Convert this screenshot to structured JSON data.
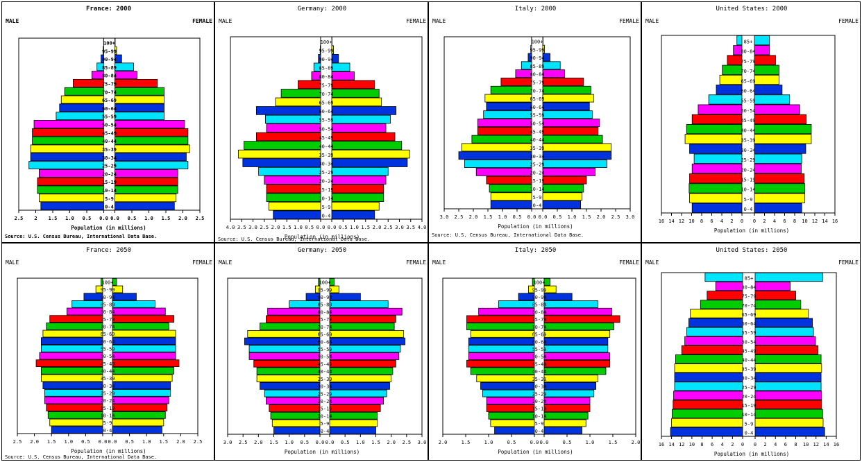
{
  "palette": [
    "#0033dd",
    "#ffff00",
    "#00cc00",
    "#ff0000",
    "#ff00ff",
    "#00e5ff"
  ],
  "age_groups": [
    "0-4",
    "5-9",
    "10-14",
    "15-19",
    "20-24",
    "25-29",
    "30-34",
    "35-39",
    "40-44",
    "45-49",
    "50-54",
    "55-59",
    "60-64",
    "65-69",
    "70-74",
    "75-79",
    "80-84",
    "85-89",
    "90-94",
    "95-99",
    "100+"
  ],
  "age_groups_us": [
    "0-4",
    "5-9",
    "10-14",
    "15-19",
    "20-24",
    "25-29",
    "30-34",
    "35-39",
    "40-44",
    "45-49",
    "50-54",
    "55-59",
    "60-64",
    "65-69",
    "70-74",
    "75-79",
    "80-84",
    "85+"
  ],
  "chart_data": [
    {
      "type": "bar",
      "title": "France: 2000",
      "male_label": "MALE",
      "female_label": "FEMALE",
      "xlabel": "Population (in millions)",
      "source": "Source: U.S. Census Bureau, International Data Base.",
      "ticks": [
        "2.5",
        "2",
        "1.5",
        "1.0",
        "0.5",
        "0.0",
        "0.0",
        "0.5",
        "1.0",
        "1.5",
        "2.0",
        "2.5"
      ],
      "xmax": 2.5,
      "male": [
        1.85,
        1.9,
        1.95,
        1.95,
        1.9,
        2.2,
        2.15,
        2.15,
        2.1,
        2.1,
        2.05,
        1.4,
        1.3,
        1.25,
        1.15,
        0.9,
        0.35,
        0.2,
        0.08,
        0.02,
        0.005
      ],
      "female": [
        1.75,
        1.8,
        1.85,
        1.85,
        1.85,
        2.15,
        2.1,
        2.2,
        2.15,
        2.15,
        2.05,
        1.45,
        1.45,
        1.45,
        1.45,
        1.25,
        0.65,
        0.55,
        0.2,
        0.05,
        0.01
      ]
    },
    {
      "type": "bar",
      "title": "Germany: 2000",
      "male_label": "MALE",
      "female_label": "FEMALE",
      "xlabel": "Population (in millions)",
      "source": "Source: U.S. Census Bureau, International Data Base.",
      "ticks": [
        "4.0",
        "3.5",
        "3.0",
        "2.5",
        "2.0",
        "1.5",
        "1.0",
        "0.5",
        "0.0",
        "0.0",
        "0.5",
        "1.0",
        "1.5",
        "2.0",
        "2.5",
        "3.0",
        "3.5",
        "4.0"
      ],
      "xmax": 4.0,
      "male": [
        2.1,
        2.3,
        2.4,
        2.4,
        2.5,
        2.75,
        3.45,
        3.65,
        3.4,
        2.85,
        2.4,
        2.45,
        2.85,
        2.0,
        1.75,
        1.0,
        0.4,
        0.3,
        0.1,
        0.02,
        0.005
      ],
      "female": [
        1.9,
        2.1,
        2.3,
        2.3,
        2.4,
        2.5,
        3.35,
        3.45,
        3.1,
        2.8,
        2.4,
        2.6,
        2.85,
        2.2,
        2.1,
        1.9,
        1.0,
        0.8,
        0.3,
        0.08,
        0.01
      ]
    },
    {
      "type": "bar",
      "title": "Italy: 2000",
      "male_label": "MALE",
      "female_label": "FEMALE",
      "xlabel": "Population (in millions)",
      "source": "Source: U.S. Census Bureau, International Data Base.",
      "ticks": [
        "3.0",
        "2.5",
        "2.0",
        "1.5",
        "1.0",
        "0.5",
        "0.0",
        "0.0",
        "0.5",
        "1.0",
        "1.5",
        "2.0",
        "2.5",
        "3.0"
      ],
      "xmax": 3.0,
      "male": [
        1.4,
        1.4,
        1.45,
        1.55,
        1.9,
        2.3,
        2.5,
        2.4,
        2.05,
        1.85,
        1.85,
        1.65,
        1.55,
        1.6,
        1.4,
        1.05,
        0.55,
        0.35,
        0.12,
        0.03,
        0.005
      ],
      "female": [
        1.3,
        1.35,
        1.4,
        1.5,
        1.8,
        2.2,
        2.35,
        2.35,
        2.05,
        1.9,
        1.95,
        1.7,
        1.6,
        1.75,
        1.65,
        1.4,
        0.75,
        0.6,
        0.25,
        0.06,
        0.01
      ]
    },
    {
      "type": "bar",
      "title": "United States: 2000",
      "male_label": "MALE",
      "female_label": "FEMALE",
      "xlabel": "Population (in millions)",
      "source": "",
      "ticks": [
        "16",
        "14",
        "12",
        "10",
        "8",
        "6",
        "4",
        "2",
        "0",
        "0",
        "2",
        "4",
        "6",
        "8",
        "10",
        "12",
        "14",
        "16"
      ],
      "xmax": 16,
      "male": [
        9.9,
        10.4,
        10.5,
        10.4,
        9.9,
        9.5,
        10.4,
        11.3,
        11.0,
        9.9,
        8.7,
        6.6,
        5.1,
        4.4,
        3.9,
        2.9,
        1.7,
        1.0
      ],
      "female": [
        9.4,
        10.0,
        10.0,
        9.9,
        9.3,
        9.4,
        10.2,
        11.3,
        11.3,
        10.3,
        9.0,
        7.0,
        5.5,
        4.9,
        4.9,
        4.2,
        3.0,
        3.0
      ]
    },
    {
      "type": "bar",
      "title": "France: 2050",
      "male_label": "MALE",
      "female_label": "FEMALE",
      "xlabel": "Population (in millions)",
      "source": "Source: U.S. Census Bureau, International Data Base.",
      "ticks": [
        "2.5",
        "2.0",
        "1.5",
        "1.0",
        "0.5",
        "0.0",
        "0.0",
        "0.5",
        "1.0",
        "1.5",
        "2.0",
        "2.5"
      ],
      "xmax": 2.5,
      "male": [
        1.5,
        1.55,
        1.6,
        1.65,
        1.7,
        1.7,
        1.75,
        1.8,
        1.8,
        1.95,
        1.85,
        1.8,
        1.8,
        1.75,
        1.65,
        1.55,
        1.05,
        0.9,
        0.55,
        0.2,
        0.05
      ],
      "female": [
        1.45,
        1.5,
        1.55,
        1.6,
        1.65,
        1.7,
        1.7,
        1.75,
        1.8,
        1.95,
        1.85,
        1.85,
        1.85,
        1.85,
        1.65,
        1.8,
        1.55,
        1.25,
        0.7,
        0.3,
        0.12
      ]
    },
    {
      "type": "bar",
      "title": "Germany: 2050",
      "male_label": "MALE",
      "female_label": "FEMALE",
      "xlabel": "Population (in millions)",
      "source": "",
      "ticks": [
        "3.0",
        "2.5",
        "2.0",
        "1.5",
        "1.0",
        "0.5",
        "0.0",
        "0.0",
        "0.5",
        "1.0",
        "1.5",
        "2.0",
        "2.5",
        "3.0"
      ],
      "xmax": 3.0,
      "male": [
        1.5,
        1.55,
        1.6,
        1.65,
        1.75,
        1.8,
        1.95,
        2.05,
        2.05,
        2.15,
        2.3,
        2.3,
        2.45,
        2.35,
        1.95,
        1.75,
        1.7,
        1.0,
        0.45,
        0.15,
        0.05
      ],
      "female": [
        1.5,
        1.55,
        1.55,
        1.65,
        1.75,
        1.85,
        1.95,
        2.0,
        2.05,
        2.15,
        2.25,
        2.3,
        2.45,
        2.4,
        2.1,
        2.15,
        2.35,
        1.9,
        1.0,
        0.3,
        0.15
      ]
    },
    {
      "type": "bar",
      "title": "Italy: 2050",
      "male_label": "MALE",
      "female_label": "FEMALE",
      "xlabel": "Population (in millions)",
      "source": "",
      "ticks": [
        "2.0",
        "1.5",
        "1.0",
        "0.5",
        "0.0",
        "0.0",
        "0.5",
        "1.0",
        "1.5",
        "2.0"
      ],
      "xmax": 2.3,
      "male": [
        1.0,
        1.1,
        1.15,
        1.2,
        1.2,
        1.3,
        1.35,
        1.45,
        1.6,
        1.7,
        1.65,
        1.65,
        1.65,
        1.6,
        1.7,
        1.7,
        1.4,
        0.9,
        0.4,
        0.15,
        0.05
      ],
      "female": [
        0.95,
        1.05,
        1.1,
        1.15,
        1.15,
        1.25,
        1.3,
        1.35,
        1.55,
        1.65,
        1.65,
        1.6,
        1.6,
        1.65,
        1.75,
        1.9,
        1.7,
        1.35,
        0.7,
        0.3,
        0.15
      ]
    },
    {
      "type": "bar",
      "title": "United States: 2050",
      "male_label": "MALE",
      "female_label": "FEMALE",
      "xlabel": "Population (in millions)",
      "source": "",
      "ticks": [
        "16",
        "14",
        "12",
        "10",
        "8",
        "6",
        "4",
        "2",
        "0",
        "0",
        "2",
        "4",
        "6",
        "8",
        "10",
        "12",
        "14",
        "16"
      ],
      "xmax": 16,
      "male": [
        14.2,
        14.0,
        13.9,
        13.7,
        13.6,
        13.4,
        13.4,
        13.4,
        13.2,
        12.0,
        11.4,
        11.0,
        10.6,
        10.3,
        8.3,
        7.0,
        5.3,
        7.4
      ],
      "female": [
        13.7,
        13.4,
        13.3,
        13.1,
        13.1,
        13.0,
        13.0,
        13.1,
        13.0,
        12.4,
        11.9,
        11.5,
        11.3,
        10.5,
        9.0,
        8.0,
        6.9,
        13.3
      ]
    }
  ]
}
